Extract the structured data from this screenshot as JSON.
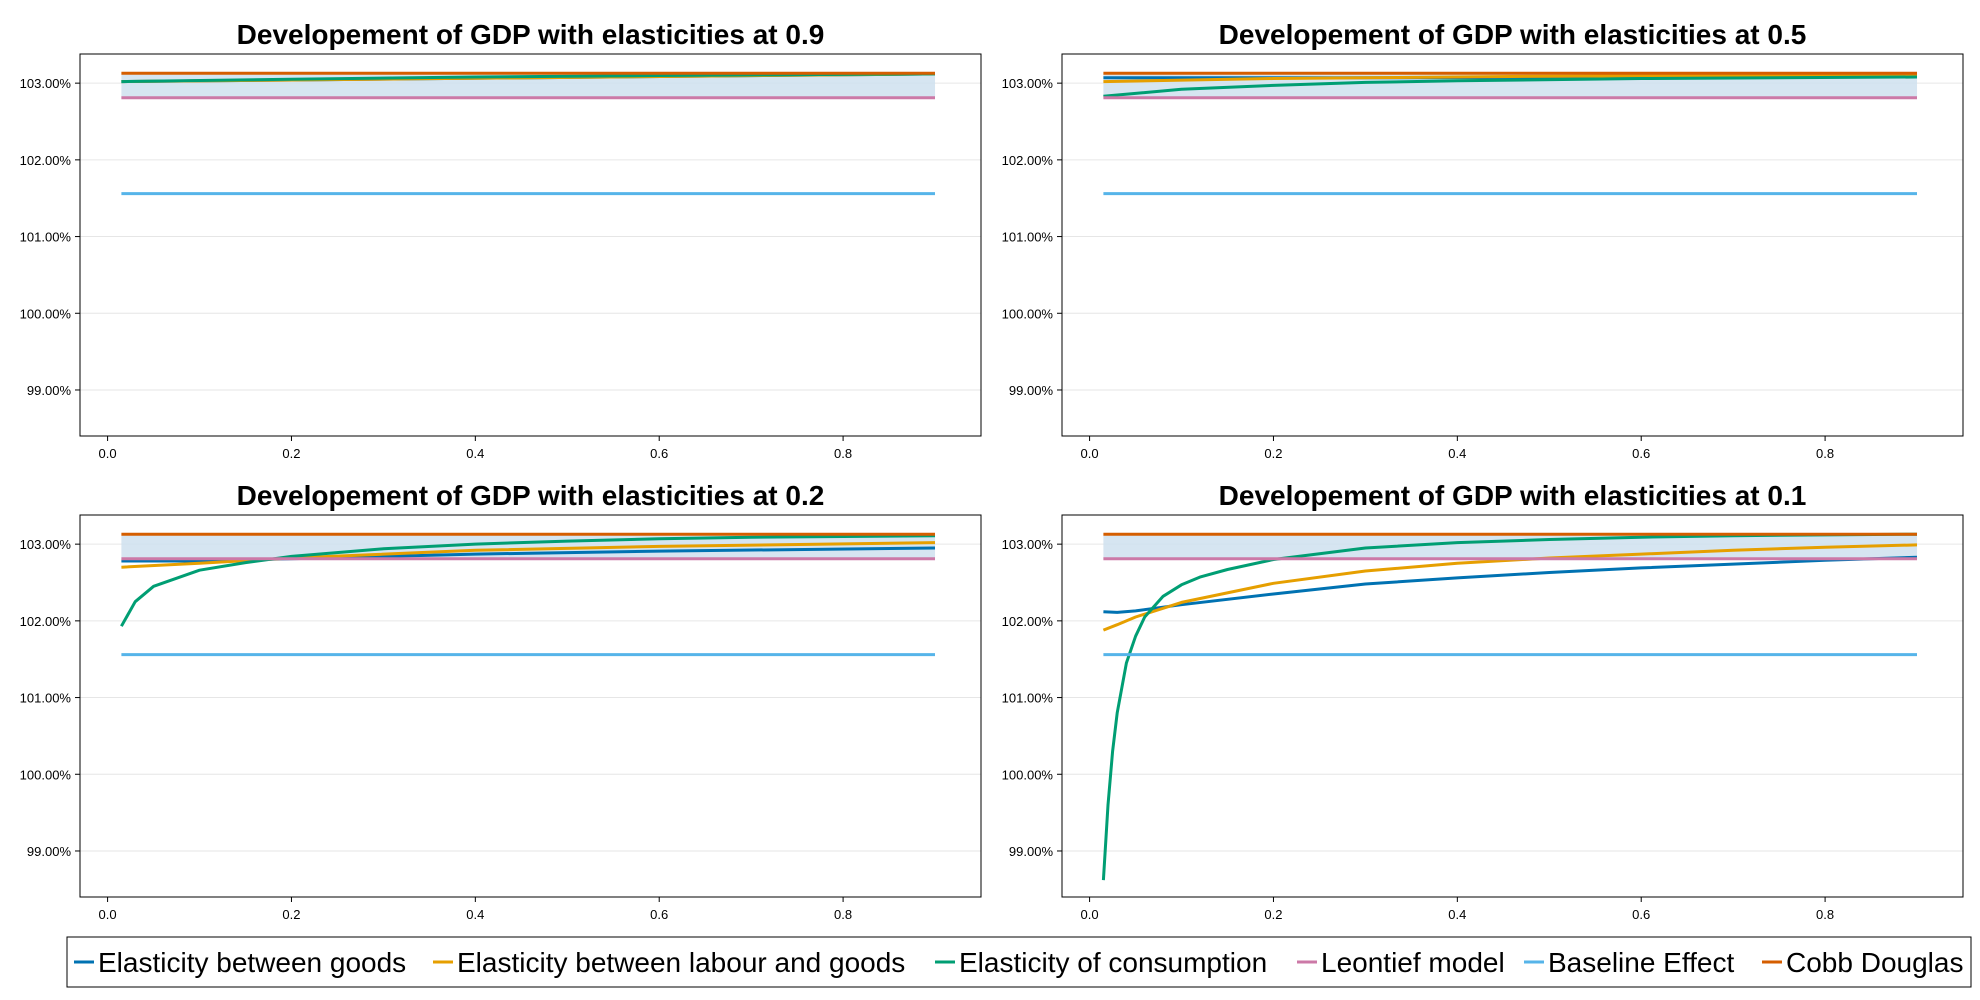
{
  "chart_data": [
    {
      "type": "line",
      "title": "Developement of GDP with elasticities at 0.9",
      "xlabel": "",
      "ylabel": "",
      "x_ticks": [
        "0.0",
        "0.2",
        "0.4",
        "0.6",
        "0.8"
      ],
      "y_ticks": [
        "99.00%",
        "100.00%",
        "101.00%",
        "102.00%",
        "103.00%"
      ],
      "xlim": [
        -0.03,
        0.95
      ],
      "ylim": [
        98.4,
        103.38
      ],
      "x_range": [
        0.015,
        0.9
      ],
      "grid": true,
      "band": {
        "low": 102.81,
        "high": 103.13
      },
      "series": [
        {
          "name": "Elasticity between goods",
          "color": "#0072B2",
          "x": [
            0.015,
            0.9
          ],
          "y": [
            103.02,
            103.12
          ]
        },
        {
          "name": "Elasticity between labour and goods",
          "color": "#E69F00",
          "x": [
            0.015,
            0.9
          ],
          "y": [
            103.02,
            103.12
          ]
        },
        {
          "name": "Elasticity of consumption",
          "color": "#009E73",
          "x": [
            0.015,
            0.2,
            0.4,
            0.6,
            0.9
          ],
          "y": [
            103.02,
            103.05,
            103.08,
            103.1,
            103.12
          ]
        },
        {
          "name": "Leontief model",
          "color": "#CC79A7",
          "x": [
            0.015,
            0.9
          ],
          "y": [
            102.81,
            102.81
          ]
        },
        {
          "name": "Baseline Effect",
          "color": "#56B4E9",
          "x": [
            0.015,
            0.9
          ],
          "y": [
            101.56,
            101.56
          ]
        },
        {
          "name": "Cobb Douglas",
          "color": "#D55E00",
          "x": [
            0.015,
            0.9
          ],
          "y": [
            103.13,
            103.13
          ]
        }
      ]
    },
    {
      "type": "line",
      "title": "Developement of GDP with elasticities at 0.5",
      "xlabel": "",
      "ylabel": "",
      "x_ticks": [
        "0.0",
        "0.2",
        "0.4",
        "0.6",
        "0.8"
      ],
      "y_ticks": [
        "99.00%",
        "100.00%",
        "101.00%",
        "102.00%",
        "103.00%"
      ],
      "xlim": [
        -0.03,
        0.95
      ],
      "ylim": [
        98.4,
        103.38
      ],
      "x_range": [
        0.015,
        0.9
      ],
      "grid": true,
      "band": {
        "low": 102.81,
        "high": 103.13
      },
      "series": [
        {
          "name": "Elasticity between goods",
          "color": "#0072B2",
          "x": [
            0.015,
            0.3,
            0.6,
            0.9
          ],
          "y": [
            103.07,
            103.07,
            103.08,
            103.09
          ]
        },
        {
          "name": "Elasticity between labour and goods",
          "color": "#E69F00",
          "x": [
            0.015,
            0.2,
            0.5,
            0.9
          ],
          "y": [
            103.02,
            103.06,
            103.09,
            103.11
          ]
        },
        {
          "name": "Elasticity of consumption",
          "color": "#009E73",
          "x": [
            0.015,
            0.1,
            0.2,
            0.3,
            0.4,
            0.6,
            0.9
          ],
          "y": [
            102.83,
            102.92,
            102.97,
            103.01,
            103.03,
            103.06,
            103.08
          ]
        },
        {
          "name": "Leontief model",
          "color": "#CC79A7",
          "x": [
            0.015,
            0.9
          ],
          "y": [
            102.81,
            102.81
          ]
        },
        {
          "name": "Baseline Effect",
          "color": "#56B4E9",
          "x": [
            0.015,
            0.9
          ],
          "y": [
            101.56,
            101.56
          ]
        },
        {
          "name": "Cobb Douglas",
          "color": "#D55E00",
          "x": [
            0.015,
            0.9
          ],
          "y": [
            103.13,
            103.13
          ]
        }
      ]
    },
    {
      "type": "line",
      "title": "Developement of GDP with elasticities at 0.2",
      "xlabel": "",
      "ylabel": "",
      "x_ticks": [
        "0.0",
        "0.2",
        "0.4",
        "0.6",
        "0.8"
      ],
      "y_ticks": [
        "99.00%",
        "100.00%",
        "101.00%",
        "102.00%",
        "103.00%"
      ],
      "xlim": [
        -0.03,
        0.95
      ],
      "ylim": [
        98.4,
        103.38
      ],
      "x_range": [
        0.015,
        0.9
      ],
      "grid": true,
      "band": {
        "low": 102.81,
        "high": 103.13
      },
      "series": [
        {
          "name": "Elasticity between goods",
          "color": "#0072B2",
          "x": [
            0.015,
            0.1,
            0.2,
            0.4,
            0.6,
            0.9
          ],
          "y": [
            102.78,
            102.78,
            102.81,
            102.87,
            102.91,
            102.95
          ]
        },
        {
          "name": "Elasticity between labour and goods",
          "color": "#E69F00",
          "x": [
            0.015,
            0.1,
            0.2,
            0.4,
            0.6,
            0.9
          ],
          "y": [
            102.7,
            102.75,
            102.82,
            102.92,
            102.97,
            103.02
          ]
        },
        {
          "name": "Elasticity of consumption",
          "color": "#009E73",
          "x": [
            0.015,
            0.03,
            0.05,
            0.1,
            0.15,
            0.2,
            0.3,
            0.4,
            0.5,
            0.6,
            0.7,
            0.8,
            0.9
          ],
          "y": [
            101.93,
            102.25,
            102.45,
            102.66,
            102.76,
            102.84,
            102.94,
            103.0,
            103.04,
            103.07,
            103.09,
            103.1,
            103.11
          ]
        },
        {
          "name": "Leontief model",
          "color": "#CC79A7",
          "x": [
            0.015,
            0.9
          ],
          "y": [
            102.81,
            102.81
          ]
        },
        {
          "name": "Baseline Effect",
          "color": "#56B4E9",
          "x": [
            0.015,
            0.9
          ],
          "y": [
            101.56,
            101.56
          ]
        },
        {
          "name": "Cobb Douglas",
          "color": "#D55E00",
          "x": [
            0.015,
            0.9
          ],
          "y": [
            103.13,
            103.13
          ]
        }
      ]
    },
    {
      "type": "line",
      "title": "Developement of GDP with elasticities at 0.1",
      "xlabel": "",
      "ylabel": "",
      "x_ticks": [
        "0.0",
        "0.2",
        "0.4",
        "0.6",
        "0.8"
      ],
      "y_ticks": [
        "99.00%",
        "100.00%",
        "101.00%",
        "102.00%",
        "103.00%"
      ],
      "xlim": [
        -0.03,
        0.95
      ],
      "ylim": [
        98.4,
        103.38
      ],
      "x_range": [
        0.015,
        0.9
      ],
      "grid": true,
      "band": {
        "low": 102.81,
        "high": 103.13
      },
      "series": [
        {
          "name": "Elasticity between goods",
          "color": "#0072B2",
          "x": [
            0.015,
            0.03,
            0.05,
            0.1,
            0.2,
            0.3,
            0.4,
            0.5,
            0.6,
            0.7,
            0.8,
            0.9
          ],
          "y": [
            102.12,
            102.11,
            102.13,
            102.21,
            102.35,
            102.48,
            102.56,
            102.63,
            102.69,
            102.74,
            102.79,
            102.83
          ]
        },
        {
          "name": "Elasticity between labour and goods",
          "color": "#E69F00",
          "x": [
            0.015,
            0.03,
            0.05,
            0.1,
            0.2,
            0.3,
            0.4,
            0.5,
            0.6,
            0.7,
            0.8,
            0.9
          ],
          "y": [
            101.88,
            101.95,
            102.05,
            102.24,
            102.49,
            102.65,
            102.75,
            102.82,
            102.87,
            102.92,
            102.96,
            102.99
          ]
        },
        {
          "name": "Elasticity of consumption",
          "color": "#009E73",
          "x": [
            0.015,
            0.02,
            0.025,
            0.03,
            0.04,
            0.05,
            0.06,
            0.08,
            0.1,
            0.12,
            0.15,
            0.2,
            0.3,
            0.4,
            0.5,
            0.6,
            0.7,
            0.8,
            0.9
          ],
          "y": [
            98.62,
            99.6,
            100.3,
            100.8,
            101.45,
            101.8,
            102.05,
            102.32,
            102.47,
            102.57,
            102.67,
            102.8,
            102.95,
            103.02,
            103.06,
            103.09,
            103.11,
            103.12,
            103.13
          ]
        },
        {
          "name": "Leontief model",
          "color": "#CC79A7",
          "x": [
            0.015,
            0.9
          ],
          "y": [
            102.81,
            102.81
          ]
        },
        {
          "name": "Baseline Effect",
          "color": "#56B4E9",
          "x": [
            0.015,
            0.9
          ],
          "y": [
            101.56,
            101.56
          ]
        },
        {
          "name": "Cobb Douglas",
          "color": "#D55E00",
          "x": [
            0.015,
            0.9
          ],
          "y": [
            103.13,
            103.13
          ]
        }
      ]
    }
  ],
  "legend": {
    "placement": "bottom",
    "entries": [
      {
        "label": "Elasticity between goods",
        "color": "#0072B2"
      },
      {
        "label": "Elasticity between labour and goods",
        "color": "#E69F00"
      },
      {
        "label": "Elasticity of consumption",
        "color": "#009E73"
      },
      {
        "label": "Leontief model",
        "color": "#CC79A7"
      },
      {
        "label": "Baseline Effect",
        "color": "#56B4E9"
      },
      {
        "label": "Cobb Douglas",
        "color": "#D55E00"
      }
    ]
  },
  "colors": {
    "band_fill": "#cfe0ef",
    "grid": "#e6e6e6",
    "axis": "#000000"
  }
}
